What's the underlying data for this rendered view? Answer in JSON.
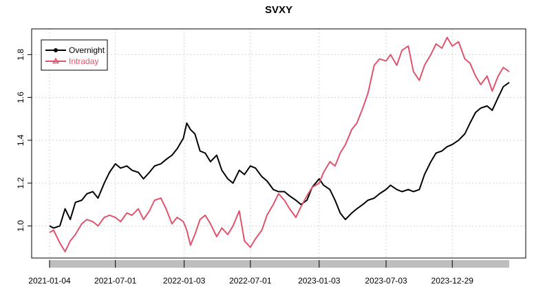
{
  "chart_data": {
    "type": "line",
    "title": "SVXY",
    "xlabel": "",
    "ylabel": "",
    "x_tick_labels": [
      "2021-01-04",
      "2021-07-01",
      "2022-01-03",
      "2022-07-01",
      "2023-01-03",
      "2023-07-03",
      "2023-12-29"
    ],
    "x_range": [
      "2021-01-04",
      "2024-05-31"
    ],
    "ylim": [
      0.85,
      1.92
    ],
    "y_ticks": [
      1.0,
      1.2,
      1.4,
      1.6,
      1.8
    ],
    "y_tick_labels": [
      "1.0",
      "1.2",
      "1.4",
      "1.6",
      "1.8"
    ],
    "grid": true,
    "legend_position": "top-left",
    "series": [
      {
        "name": "Overnight",
        "color": "#000000",
        "marker": "circle",
        "points": [
          [
            "2021-01-04",
            1.0
          ],
          [
            "2021-01-15",
            0.99
          ],
          [
            "2021-02-01",
            1.0
          ],
          [
            "2021-02-15",
            1.08
          ],
          [
            "2021-03-01",
            1.03
          ],
          [
            "2021-03-15",
            1.11
          ],
          [
            "2021-04-01",
            1.12
          ],
          [
            "2021-04-15",
            1.15
          ],
          [
            "2021-05-01",
            1.16
          ],
          [
            "2021-05-15",
            1.13
          ],
          [
            "2021-06-01",
            1.2
          ],
          [
            "2021-06-15",
            1.25
          ],
          [
            "2021-07-01",
            1.29
          ],
          [
            "2021-07-15",
            1.27
          ],
          [
            "2021-08-01",
            1.28
          ],
          [
            "2021-08-15",
            1.26
          ],
          [
            "2021-09-01",
            1.25
          ],
          [
            "2021-09-15",
            1.22
          ],
          [
            "2021-10-01",
            1.25
          ],
          [
            "2021-10-15",
            1.28
          ],
          [
            "2021-11-01",
            1.29
          ],
          [
            "2021-11-15",
            1.31
          ],
          [
            "2021-12-01",
            1.33
          ],
          [
            "2021-12-15",
            1.36
          ],
          [
            "2022-01-01",
            1.41
          ],
          [
            "2022-01-10",
            1.48
          ],
          [
            "2022-01-20",
            1.45
          ],
          [
            "2022-02-01",
            1.43
          ],
          [
            "2022-02-15",
            1.35
          ],
          [
            "2022-03-01",
            1.34
          ],
          [
            "2022-03-15",
            1.3
          ],
          [
            "2022-04-01",
            1.33
          ],
          [
            "2022-04-15",
            1.26
          ],
          [
            "2022-05-01",
            1.22
          ],
          [
            "2022-05-15",
            1.2
          ],
          [
            "2022-06-01",
            1.26
          ],
          [
            "2022-06-15",
            1.24
          ],
          [
            "2022-07-01",
            1.28
          ],
          [
            "2022-07-15",
            1.27
          ],
          [
            "2022-08-01",
            1.23
          ],
          [
            "2022-08-15",
            1.21
          ],
          [
            "2022-09-01",
            1.17
          ],
          [
            "2022-09-15",
            1.16
          ],
          [
            "2022-10-01",
            1.16
          ],
          [
            "2022-10-15",
            1.14
          ],
          [
            "2022-11-01",
            1.12
          ],
          [
            "2022-11-15",
            1.1
          ],
          [
            "2022-12-01",
            1.12
          ],
          [
            "2022-12-15",
            1.18
          ],
          [
            "2023-01-03",
            1.22
          ],
          [
            "2023-01-15",
            1.19
          ],
          [
            "2023-02-01",
            1.17
          ],
          [
            "2023-02-15",
            1.12
          ],
          [
            "2023-03-01",
            1.06
          ],
          [
            "2023-03-15",
            1.03
          ],
          [
            "2023-04-01",
            1.06
          ],
          [
            "2023-04-15",
            1.08
          ],
          [
            "2023-05-01",
            1.1
          ],
          [
            "2023-05-15",
            1.12
          ],
          [
            "2023-06-01",
            1.13
          ],
          [
            "2023-06-15",
            1.15
          ],
          [
            "2023-07-03",
            1.17
          ],
          [
            "2023-07-15",
            1.19
          ],
          [
            "2023-08-01",
            1.17
          ],
          [
            "2023-08-15",
            1.16
          ],
          [
            "2023-09-01",
            1.17
          ],
          [
            "2023-09-15",
            1.16
          ],
          [
            "2023-10-01",
            1.17
          ],
          [
            "2023-10-15",
            1.24
          ],
          [
            "2023-11-01",
            1.3
          ],
          [
            "2023-11-15",
            1.34
          ],
          [
            "2023-12-01",
            1.35
          ],
          [
            "2023-12-15",
            1.37
          ],
          [
            "2023-12-29",
            1.38
          ],
          [
            "2024-01-15",
            1.4
          ],
          [
            "2024-02-01",
            1.43
          ],
          [
            "2024-02-15",
            1.48
          ],
          [
            "2024-03-01",
            1.53
          ],
          [
            "2024-03-15",
            1.55
          ],
          [
            "2024-04-01",
            1.56
          ],
          [
            "2024-04-15",
            1.54
          ],
          [
            "2024-05-01",
            1.6
          ],
          [
            "2024-05-15",
            1.65
          ],
          [
            "2024-05-31",
            1.67
          ]
        ]
      },
      {
        "name": "Intraday",
        "color": "#DF536B",
        "marker": "triangle",
        "points": [
          [
            "2021-01-04",
            0.97
          ],
          [
            "2021-01-15",
            0.98
          ],
          [
            "2021-02-01",
            0.92
          ],
          [
            "2021-02-15",
            0.88
          ],
          [
            "2021-03-01",
            0.93
          ],
          [
            "2021-03-15",
            0.96
          ],
          [
            "2021-04-01",
            1.01
          ],
          [
            "2021-04-15",
            1.03
          ],
          [
            "2021-05-01",
            1.02
          ],
          [
            "2021-05-15",
            1.0
          ],
          [
            "2021-06-01",
            1.04
          ],
          [
            "2021-06-15",
            1.05
          ],
          [
            "2021-07-01",
            1.04
          ],
          [
            "2021-07-15",
            1.02
          ],
          [
            "2021-08-01",
            1.06
          ],
          [
            "2021-08-15",
            1.05
          ],
          [
            "2021-09-01",
            1.08
          ],
          [
            "2021-09-15",
            1.03
          ],
          [
            "2021-10-01",
            1.07
          ],
          [
            "2021-10-15",
            1.12
          ],
          [
            "2021-11-01",
            1.13
          ],
          [
            "2021-11-15",
            1.08
          ],
          [
            "2021-12-01",
            1.01
          ],
          [
            "2021-12-15",
            1.04
          ],
          [
            "2022-01-01",
            1.02
          ],
          [
            "2022-01-10",
            0.98
          ],
          [
            "2022-01-20",
            0.91
          ],
          [
            "2022-02-01",
            0.96
          ],
          [
            "2022-02-15",
            1.03
          ],
          [
            "2022-03-01",
            1.05
          ],
          [
            "2022-03-15",
            1.01
          ],
          [
            "2022-04-01",
            0.95
          ],
          [
            "2022-04-15",
            0.99
          ],
          [
            "2022-05-01",
            0.96
          ],
          [
            "2022-05-15",
            1.0
          ],
          [
            "2022-06-01",
            1.07
          ],
          [
            "2022-06-15",
            0.93
          ],
          [
            "2022-07-01",
            0.9
          ],
          [
            "2022-07-15",
            0.94
          ],
          [
            "2022-08-01",
            0.98
          ],
          [
            "2022-08-15",
            1.05
          ],
          [
            "2022-09-01",
            1.1
          ],
          [
            "2022-09-15",
            1.15
          ],
          [
            "2022-10-01",
            1.12
          ],
          [
            "2022-10-15",
            1.08
          ],
          [
            "2022-11-01",
            1.04
          ],
          [
            "2022-11-15",
            1.09
          ],
          [
            "2022-12-01",
            1.14
          ],
          [
            "2022-12-15",
            1.18
          ],
          [
            "2023-01-03",
            1.2
          ],
          [
            "2023-01-15",
            1.25
          ],
          [
            "2023-02-01",
            1.3
          ],
          [
            "2023-02-15",
            1.28
          ],
          [
            "2023-03-01",
            1.34
          ],
          [
            "2023-03-15",
            1.38
          ],
          [
            "2023-04-01",
            1.45
          ],
          [
            "2023-04-15",
            1.48
          ],
          [
            "2023-05-01",
            1.55
          ],
          [
            "2023-05-15",
            1.62
          ],
          [
            "2023-06-01",
            1.75
          ],
          [
            "2023-06-15",
            1.78
          ],
          [
            "2023-07-03",
            1.77
          ],
          [
            "2023-07-15",
            1.8
          ],
          [
            "2023-08-01",
            1.75
          ],
          [
            "2023-08-15",
            1.82
          ],
          [
            "2023-09-01",
            1.84
          ],
          [
            "2023-09-15",
            1.72
          ],
          [
            "2023-10-01",
            1.68
          ],
          [
            "2023-10-15",
            1.75
          ],
          [
            "2023-11-01",
            1.8
          ],
          [
            "2023-11-15",
            1.85
          ],
          [
            "2023-12-01",
            1.83
          ],
          [
            "2023-12-15",
            1.88
          ],
          [
            "2023-12-29",
            1.84
          ],
          [
            "2024-01-15",
            1.86
          ],
          [
            "2024-02-01",
            1.78
          ],
          [
            "2024-02-15",
            1.76
          ],
          [
            "2024-03-01",
            1.7
          ],
          [
            "2024-03-15",
            1.66
          ],
          [
            "2024-04-01",
            1.7
          ],
          [
            "2024-04-15",
            1.63
          ],
          [
            "2024-05-01",
            1.7
          ],
          [
            "2024-05-15",
            1.74
          ],
          [
            "2024-05-31",
            1.72
          ]
        ]
      }
    ]
  }
}
